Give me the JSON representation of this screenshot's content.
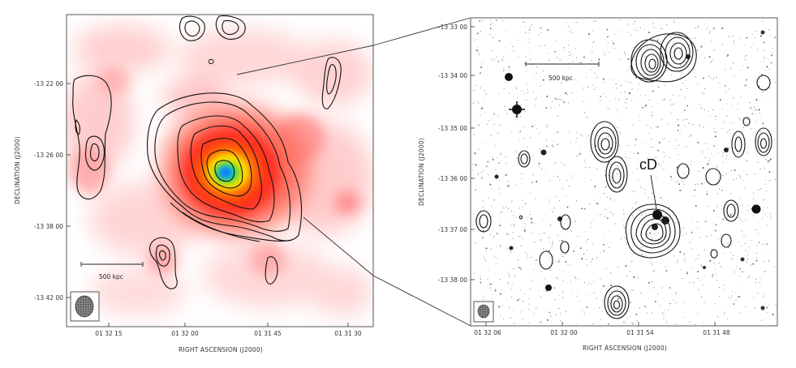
{
  "left_panel": {
    "xlabel": "RIGHT ASCENSION (J2000)",
    "ylabel": "DECLINATION (J2000)",
    "xticks": [
      "01 32 15",
      "01 32 00",
      "01 31 45",
      "01 31 30"
    ],
    "yticks": [
      "-13 22 00",
      "-13 26 00",
      "-13 38 00",
      "-13 42 00"
    ],
    "scalebar_label": "500 kpc"
  },
  "right_panel": {
    "xlabel": "RIGHT ASCENSION (J2000)",
    "ylabel": "DECLINATION (J2000)",
    "xticks": [
      "01 32 06",
      "01 32 00",
      "01 31 54",
      "01 31 48"
    ],
    "yticks": [
      "-13 33 00",
      "-13 34 00",
      "-13 35 00",
      "-13 36 00",
      "-13 37 00",
      "-13 38 00"
    ],
    "scalebar_label": "500 kpc",
    "annotation": "cD"
  },
  "colors": {
    "xray_low": "#ffd6d6",
    "xray_mid": "#ff2a1a",
    "xray_high": "#ffe000",
    "xray_peak": "#1f6dff",
    "contour": "#111111"
  }
}
